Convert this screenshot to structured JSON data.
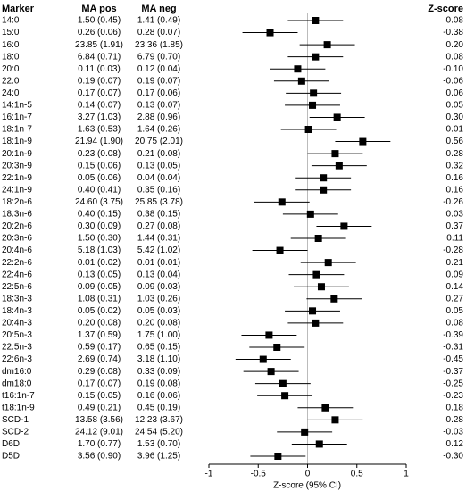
{
  "chart_data": {
    "type": "forest",
    "headers": [
      "Marker",
      "MA pos",
      "MA neg",
      "Z-score"
    ],
    "xlabel": "Z-score (95% CI)",
    "categories": [
      "14:0",
      "15:0",
      "16:0",
      "18:0",
      "20:0",
      "22:0",
      "24:0",
      "14:1n-5",
      "16:1n-7",
      "18:1n-7",
      "18:1n-9",
      "20:1n-9",
      "20:3n-9",
      "22:1n-9",
      "24:1n-9",
      "18:2n-6",
      "18:3n-6",
      "20:2n-6",
      "20:3n-6",
      "20:4n-6",
      "22:2n-6",
      "22:4n-6",
      "22:5n-6",
      "18:3n-3",
      "18:4n-3",
      "20:4n-3",
      "20:5n-3",
      "22:5n-3",
      "22:6n-3",
      "dm16:0",
      "dm18:0",
      "t16:1n-7",
      "t18:1n-9",
      "SCD-1",
      "SCD-2",
      "D6D",
      "D5D"
    ],
    "ma_pos": [
      "1.50 (0.45)",
      "0.26 (0.06)",
      "23.85 (1.91)",
      "6.84 (0.71)",
      "0.11 (0.03)",
      "0.19 (0.07)",
      "0.17 (0.07)",
      "0.14 (0.07)",
      "3.27 (1.03)",
      "1.63 (0.53)",
      "21.94 (1.90)",
      "0.23 (0.08)",
      "0.15 (0.06)",
      "0.05 (0.06)",
      "0.40 (0.41)",
      "24.60 (3.75)",
      "0.40 (0.15)",
      "0.30 (0.09)",
      "1.50 (0.30)",
      "5.18 (1.03)",
      "0.01 (0.02)",
      "0.13 (0.05)",
      "0.09 (0.05)",
      "1.08 (0.31)",
      "0.05 (0.02)",
      "0.20 (0.08)",
      "1.37 (0.59)",
      "0.59 (0.17)",
      "2.69 (0.74)",
      "0.29 (0.08)",
      "0.17 (0.07)",
      "0.15 (0.05)",
      "0.49 (0.21)",
      "13.58 (3.56)",
      "24.12 (9.01)",
      "1.70 (0.77)",
      "3.56 (0.90)"
    ],
    "ma_neg": [
      "1.41 (0.49)",
      "0.28 (0.07)",
      "23.36 (1.85)",
      "6.79 (0.70)",
      "0.12 (0.04)",
      "0.19 (0.07)",
      "0.17 (0.06)",
      "0.13 (0.07)",
      "2.88 (0.96)",
      "1.64 (0.26)",
      "20.75 (2.01)",
      "0.21 (0.08)",
      "0.13 (0.05)",
      "0.04 (0.04)",
      "0.35 (0.16)",
      "25.85 (3.78)",
      "0.38 (0.15)",
      "0.27 (0.08)",
      "1.44 (0.31)",
      "5.42 (1.02)",
      "0.01 (0.01)",
      "0.13 (0.04)",
      "0.09 (0.03)",
      "1.03 (0.26)",
      "0.05 (0.03)",
      "0.20 (0.08)",
      "1.75 (1.00)",
      "0.65 (0.15)",
      "3.18 (1.10)",
      "0.33 (0.09)",
      "0.19 (0.08)",
      "0.16 (0.06)",
      "0.45 (0.19)",
      "12.23 (3.67)",
      "24.54 (5.20)",
      "1.53 (0.70)",
      "3.96 (1.25)"
    ],
    "values": [
      0.08,
      -0.38,
      0.2,
      0.08,
      -0.1,
      -0.06,
      0.06,
      0.05,
      0.3,
      0.01,
      0.56,
      0.28,
      0.32,
      0.16,
      0.16,
      -0.26,
      0.03,
      0.37,
      0.11,
      -0.28,
      0.21,
      0.09,
      0.14,
      0.27,
      0.05,
      0.08,
      -0.39,
      -0.31,
      -0.45,
      -0.37,
      -0.25,
      -0.23,
      0.18,
      0.28,
      -0.03,
      0.12,
      -0.3
    ],
    "value_labels": [
      "0.08",
      "-0.38",
      "0.20",
      "0.08",
      "-0.10",
      "-0.06",
      "0.06",
      "0.05",
      "0.30",
      "0.01",
      "0.56",
      "0.28",
      "0.32",
      "0.16",
      "0.16",
      "-0.26",
      "0.03",
      "0.37",
      "0.11",
      "-0.28",
      "0.21",
      "0.09",
      "0.14",
      "0.27",
      "0.05",
      "0.08",
      "-0.39",
      "-0.31",
      "-0.45",
      "-0.37",
      "-0.25",
      "-0.23",
      "0.18",
      "0.28",
      "-0.03",
      "0.12",
      "-0.30"
    ],
    "lower": [
      -0.2,
      -0.66,
      -0.08,
      -0.2,
      -0.38,
      -0.34,
      -0.22,
      -0.23,
      0.02,
      -0.27,
      0.28,
      0.0,
      0.04,
      -0.12,
      -0.12,
      -0.54,
      -0.25,
      0.09,
      -0.17,
      -0.56,
      -0.07,
      -0.19,
      -0.14,
      -0.01,
      -0.23,
      -0.2,
      -0.67,
      -0.59,
      -0.73,
      -0.65,
      -0.53,
      -0.51,
      -0.1,
      0.0,
      -0.31,
      -0.16,
      -0.58
    ],
    "upper": [
      0.36,
      -0.1,
      0.48,
      0.36,
      0.18,
      0.22,
      0.34,
      0.33,
      0.58,
      0.29,
      0.84,
      0.56,
      0.6,
      0.44,
      0.44,
      0.02,
      0.31,
      0.65,
      0.39,
      0.0,
      0.49,
      0.37,
      0.42,
      0.55,
      0.33,
      0.36,
      -0.11,
      -0.03,
      -0.17,
      -0.09,
      0.03,
      0.05,
      0.46,
      0.56,
      0.25,
      0.4,
      -0.02
    ],
    "color": "#000000",
    "xlim": [
      -1,
      1
    ],
    "xticks": [
      -1,
      -0.5,
      0,
      0.5,
      1
    ]
  }
}
